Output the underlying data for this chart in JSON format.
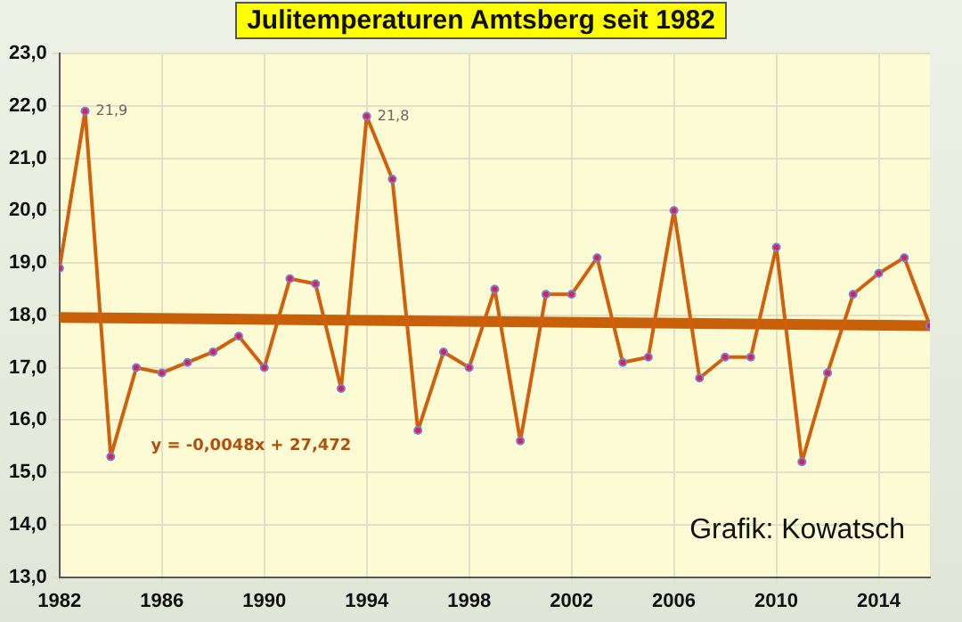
{
  "chart_data": {
    "type": "line",
    "title": "Julitemperaturen Amtsberg seit 1982",
    "x": [
      1982,
      1983,
      1984,
      1985,
      1986,
      1987,
      1988,
      1989,
      1990,
      1991,
      1992,
      1993,
      1994,
      1995,
      1996,
      1997,
      1998,
      1999,
      2000,
      2001,
      2002,
      2003,
      2004,
      2005,
      2006,
      2007,
      2008,
      2009,
      2010,
      2011,
      2012,
      2013,
      2014,
      2015,
      2016
    ],
    "series": [
      {
        "color": "#d0600c",
        "marker": "circle",
        "values": [
          18.9,
          21.9,
          15.3,
          17.0,
          16.9,
          17.1,
          17.3,
          17.6,
          17.0,
          18.7,
          18.6,
          16.6,
          21.8,
          20.6,
          15.8,
          17.3,
          17.0,
          18.5,
          15.6,
          18.4,
          18.4,
          19.1,
          17.1,
          17.2,
          20.0,
          16.8,
          17.2,
          17.2,
          19.3,
          15.2,
          16.9,
          18.4,
          18.8,
          19.1,
          17.8
        ],
        "value_labels": [
          null,
          "21,9",
          null,
          null,
          null,
          null,
          null,
          null,
          null,
          null,
          null,
          null,
          "21,8",
          null,
          null,
          null,
          null,
          null,
          null,
          null,
          null,
          null,
          null,
          null,
          null,
          null,
          null,
          null,
          null,
          null,
          null,
          null,
          null,
          null,
          null
        ]
      },
      {
        "color": "#c8600a",
        "marker": "none",
        "x": [
          1982,
          2016
        ],
        "values": [
          17.96,
          17.8
        ]
      }
    ],
    "xlim": [
      1982,
      2016
    ],
    "xticks": [
      1982,
      1986,
      1990,
      1994,
      1998,
      2002,
      2006,
      2010,
      2014
    ],
    "ylim": [
      13,
      23
    ],
    "yticks": [
      {
        "value": 13,
        "label": "13,0"
      },
      {
        "value": 14,
        "label": "14,0"
      },
      {
        "value": 15,
        "label": "15,0"
      },
      {
        "value": 16,
        "label": "16,0"
      },
      {
        "value": 17,
        "label": "17,0"
      },
      {
        "value": 18,
        "label": "18,0"
      },
      {
        "value": 19,
        "label": "19,0"
      },
      {
        "value": 20,
        "label": "20,0"
      },
      {
        "value": 21,
        "label": "21,0"
      },
      {
        "value": 22,
        "label": "22,0"
      },
      {
        "value": 23,
        "label": "23,0"
      }
    ],
    "grid": true,
    "legend": false,
    "annotations": [
      "y = -0,0048x + 27,472",
      "Grafik: Kowatsch"
    ]
  }
}
